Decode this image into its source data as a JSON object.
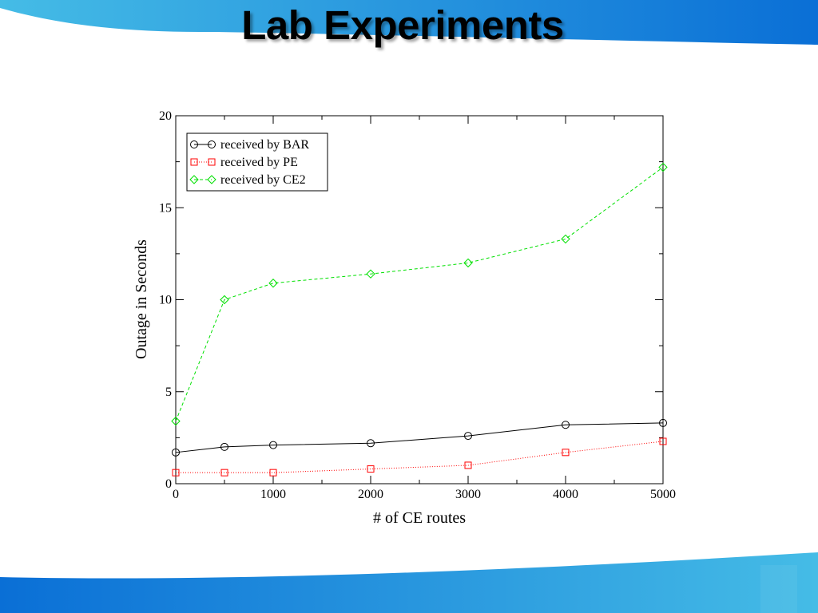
{
  "slide": {
    "title": "Lab Experiments",
    "colors": {
      "band_light": "#45bce6",
      "band_dark": "#0a6fd6"
    }
  },
  "chart_data": {
    "type": "line",
    "title": "",
    "xlabel": "# of CE routes",
    "ylabel": "Outage in Seconds",
    "xlim": [
      0,
      5000
    ],
    "ylim": [
      0,
      20
    ],
    "xticks": [
      0,
      1000,
      2000,
      3000,
      4000,
      5000
    ],
    "yticks": [
      0,
      5,
      10,
      15,
      20
    ],
    "grid": false,
    "legend_position": "top-left",
    "series": [
      {
        "name": "received by BAR",
        "color": "#000000",
        "marker": "circle",
        "line_style": "solid",
        "x": [
          0,
          500,
          1000,
          2000,
          3000,
          4000,
          5000
        ],
        "values": [
          1.7,
          2.0,
          2.1,
          2.2,
          2.6,
          3.2,
          3.3
        ]
      },
      {
        "name": "received by PE",
        "color": "#ff0000",
        "marker": "square",
        "line_style": "dotted",
        "x": [
          0,
          500,
          1000,
          2000,
          3000,
          4000,
          5000
        ],
        "values": [
          0.6,
          0.6,
          0.6,
          0.8,
          1.0,
          1.7,
          2.3
        ]
      },
      {
        "name": "received by CE2",
        "color": "#00e000",
        "marker": "diamond",
        "line_style": "dashed",
        "x": [
          0,
          500,
          1000,
          2000,
          3000,
          4000,
          5000
        ],
        "values": [
          3.4,
          10.0,
          10.9,
          11.4,
          12.0,
          13.3,
          17.2
        ]
      }
    ]
  }
}
